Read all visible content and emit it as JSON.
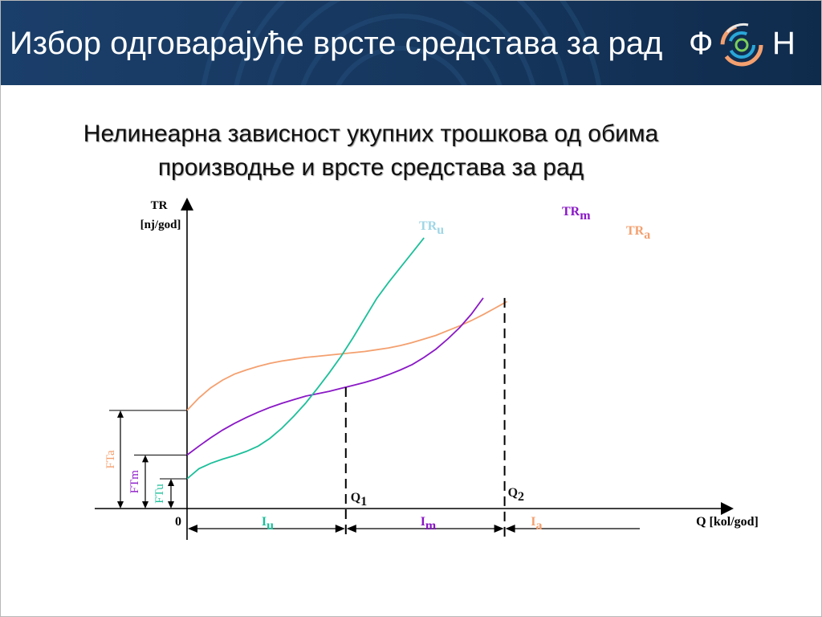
{
  "header": {
    "title": "Избор одговарајуће врсте средстава за рад",
    "logo": {
      "left": "Ф",
      "right": "Н",
      "icon": "fon-circle-logo-icon"
    }
  },
  "subtitle": {
    "line1": "Нелинеарна зависност укупних трошкова од обима",
    "line2": "производње и врсте средстава за рад"
  },
  "colors": {
    "TRa": "#f4a06f",
    "TRm": "#8a18c6",
    "TRu": "#1cbf9a",
    "header": "#16365d"
  },
  "chart_data": {
    "type": "line",
    "title": "",
    "ylabel_line1": "TR",
    "ylabel_line2": "[nj/god]",
    "xlabel": "Q [kol/god]",
    "origin": "0",
    "series": [
      {
        "key": "TRa",
        "label_main": "TR",
        "label_sub": "a",
        "fixed_cost_label": "FTa",
        "interval_label_main": "I",
        "interval_label_sub": "a",
        "x": [
          0,
          0.5,
          1,
          1.5,
          2,
          2.5,
          3,
          3.5,
          4,
          4.5,
          5,
          5.5,
          6,
          6.5,
          7,
          7.5,
          8,
          8.5,
          9,
          9.5,
          10,
          10.5,
          11,
          11.5,
          12,
          12.5,
          13,
          13.5
        ],
        "y": [
          16.5,
          18.6,
          20.3,
          21.6,
          22.6,
          23.3,
          23.9,
          24.4,
          24.8,
          25.1,
          25.4,
          25.6,
          25.8,
          26.0,
          26.2,
          26.4,
          26.7,
          27.0,
          27.4,
          27.9,
          28.5,
          29.1,
          29.9,
          30.7,
          31.6,
          32.6,
          33.7,
          34.8
        ]
      },
      {
        "key": "TRm",
        "label_main": "TR",
        "label_sub": "m",
        "fixed_cost_label": "FTm",
        "interval_label_main": "I",
        "interval_label_sub": "m",
        "x": [
          0,
          0.5,
          1,
          1.5,
          2,
          2.5,
          3,
          3.5,
          4,
          4.5,
          5,
          5.5,
          6,
          6.5,
          7,
          7.5,
          8,
          8.5,
          9,
          9.5,
          10,
          10.5,
          11,
          11.5,
          12,
          12.5
        ],
        "y": [
          9.0,
          10.5,
          11.9,
          13.2,
          14.3,
          15.3,
          16.2,
          17.0,
          17.7,
          18.3,
          18.9,
          19.3,
          19.7,
          20.2,
          20.7,
          21.2,
          21.8,
          22.5,
          23.3,
          24.2,
          25.4,
          26.8,
          28.5,
          30.4,
          32.7,
          35.4
        ]
      },
      {
        "key": "TRu",
        "label_main": "TR",
        "label_sub": "u",
        "fixed_cost_label": "FTu",
        "interval_label_main": "I",
        "interval_label_sub": "u",
        "x": [
          0,
          0.5,
          1,
          1.5,
          2,
          2.5,
          3,
          3.5,
          4,
          4.5,
          5,
          5.5,
          6,
          6.5,
          7,
          7.5,
          8,
          8.5,
          9,
          9.5,
          10
        ],
        "y": [
          5.0,
          6.7,
          7.6,
          8.3,
          8.9,
          9.6,
          10.5,
          11.8,
          13.5,
          15.5,
          17.7,
          20.2,
          22.8,
          25.6,
          28.7,
          32.0,
          35.3,
          38.0,
          40.5,
          43.0,
          45.5
        ]
      }
    ],
    "points": [
      {
        "main": "Q",
        "sub": "1",
        "x": 6.7
      },
      {
        "main": "Q",
        "sub": "2",
        "x": 13.4
      }
    ],
    "xlim": [
      0,
      23
    ],
    "ylim": [
      0,
      52
    ],
    "grid": false,
    "legend": "none"
  }
}
